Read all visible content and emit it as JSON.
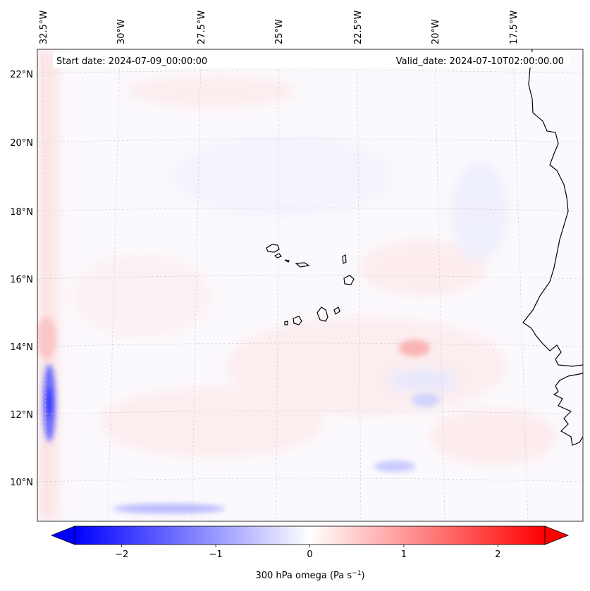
{
  "map": {
    "start_date": "Start date: 2024-07-09_00:00:00",
    "valid_date": "Valid_date: 2024-07-10T02:00:00.00",
    "lon_labels": [
      "32.5°W",
      "30°W",
      "27.5°W",
      "25°W",
      "22.5°W",
      "20°W",
      "17.5°W"
    ],
    "lat_labels": [
      "22°N",
      "20°N",
      "18°N",
      "16°N",
      "14°N",
      "12°N",
      "10°N"
    ],
    "colorbar": {
      "ticks": [
        "−2",
        "−1",
        "0",
        "1",
        "2"
      ],
      "tick_values": [
        -2,
        -1,
        0,
        1,
        2
      ],
      "min": -2.5,
      "max": 2.5,
      "label_main": "300 hPa omega (Pa s",
      "label_exp": "−1",
      "label_close": ")",
      "colors": {
        "negative": "#0000ff",
        "zero": "#ffffff",
        "positive": "#ff0000"
      }
    },
    "coastline_color": "#000000"
  }
}
